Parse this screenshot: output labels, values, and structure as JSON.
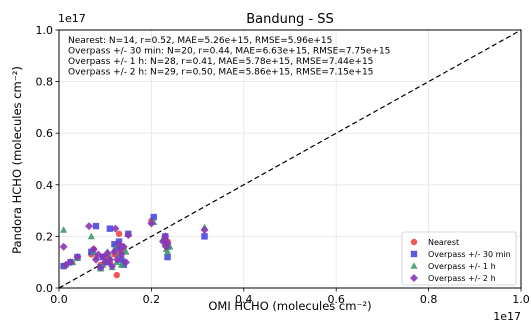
{
  "chart_data": {
    "type": "scatter",
    "title": "Bandung - SS",
    "xlabel": "OMI HCHO (molecules cm⁻²)",
    "ylabel": "Pandora HCHO (molecules cm⁻²)",
    "x_offset_label": "1e17",
    "y_offset_label": "1e17",
    "xlim": [
      0.0,
      1.0
    ],
    "ylim": [
      0.0,
      1.0
    ],
    "x_ticks": [
      "0.0",
      "0.2",
      "0.4",
      "0.6",
      "0.8",
      "1.0"
    ],
    "y_ticks": [
      "0.0",
      "0.2",
      "0.4",
      "0.6",
      "0.8",
      "1.0"
    ],
    "grid": true,
    "one_to_one_line": true,
    "legend_position": "lower right",
    "stats_lines": [
      "Nearest: N=14, r=0.52, MAE=5.26e+15, RMSE=5.96e+15",
      "Overpass +/- 30 min: N=20, r=0.44, MAE=6.63e+15, RMSE=7.75e+15",
      "Overpass +/- 1 h: N=28, r=0.41, MAE=5.78e+15, RMSE=7.44e+15",
      "Overpass +/- 2 h: N=29, r=0.50, MAE=5.86e+15, RMSE=7.15e+15"
    ],
    "series": [
      {
        "name": "Nearest",
        "marker": "circle",
        "color": "#f04646",
        "points": [
          [
            0.01,
            0.085
          ],
          [
            0.07,
            0.13
          ],
          [
            0.075,
            0.15
          ],
          [
            0.09,
            0.09
          ],
          [
            0.1,
            0.12
          ],
          [
            0.11,
            0.1
          ],
          [
            0.12,
            0.13
          ],
          [
            0.125,
            0.05
          ],
          [
            0.13,
            0.21
          ],
          [
            0.135,
            0.14
          ],
          [
            0.14,
            0.1
          ],
          [
            0.2,
            0.26
          ],
          [
            0.23,
            0.17
          ],
          [
            0.235,
            0.18
          ]
        ]
      },
      {
        "name": "Overpass +/- 30 min",
        "marker": "square",
        "color": "#4848e0",
        "points": [
          [
            0.01,
            0.085
          ],
          [
            0.025,
            0.1
          ],
          [
            0.04,
            0.12
          ],
          [
            0.07,
            0.14
          ],
          [
            0.08,
            0.24
          ],
          [
            0.09,
            0.08
          ],
          [
            0.095,
            0.12
          ],
          [
            0.105,
            0.1
          ],
          [
            0.11,
            0.23
          ],
          [
            0.12,
            0.17
          ],
          [
            0.125,
            0.16
          ],
          [
            0.13,
            0.18
          ],
          [
            0.135,
            0.11
          ],
          [
            0.14,
            0.09
          ],
          [
            0.15,
            0.21
          ],
          [
            0.205,
            0.275
          ],
          [
            0.23,
            0.2
          ],
          [
            0.235,
            0.16
          ],
          [
            0.235,
            0.12
          ],
          [
            0.315,
            0.2
          ]
        ]
      },
      {
        "name": "Overpass +/- 1 h",
        "marker": "triangle",
        "color": "#3f9a6a",
        "points": [
          [
            0.01,
            0.225
          ],
          [
            0.015,
            0.09
          ],
          [
            0.03,
            0.1
          ],
          [
            0.04,
            0.115
          ],
          [
            0.07,
            0.2
          ],
          [
            0.075,
            0.14
          ],
          [
            0.08,
            0.12
          ],
          [
            0.09,
            0.075
          ],
          [
            0.095,
            0.09
          ],
          [
            0.1,
            0.11
          ],
          [
            0.105,
            0.14
          ],
          [
            0.11,
            0.12
          ],
          [
            0.115,
            0.08
          ],
          [
            0.12,
            0.15
          ],
          [
            0.125,
            0.1
          ],
          [
            0.128,
            0.17
          ],
          [
            0.13,
            0.13
          ],
          [
            0.135,
            0.09
          ],
          [
            0.14,
            0.16
          ],
          [
            0.145,
            0.14
          ],
          [
            0.15,
            0.21
          ],
          [
            0.205,
            0.255
          ],
          [
            0.225,
            0.19
          ],
          [
            0.23,
            0.17
          ],
          [
            0.232,
            0.15
          ],
          [
            0.235,
            0.14
          ],
          [
            0.24,
            0.16
          ],
          [
            0.315,
            0.235
          ]
        ]
      },
      {
        "name": "Overpass +/- 2 h",
        "marker": "diamond",
        "color": "#8b35b8",
        "points": [
          [
            0.01,
            0.16
          ],
          [
            0.015,
            0.09
          ],
          [
            0.025,
            0.1
          ],
          [
            0.04,
            0.12
          ],
          [
            0.065,
            0.24
          ],
          [
            0.075,
            0.15
          ],
          [
            0.08,
            0.11
          ],
          [
            0.085,
            0.13
          ],
          [
            0.09,
            0.08
          ],
          [
            0.095,
            0.12
          ],
          [
            0.1,
            0.1
          ],
          [
            0.105,
            0.135
          ],
          [
            0.11,
            0.11
          ],
          [
            0.115,
            0.085
          ],
          [
            0.12,
            0.14
          ],
          [
            0.122,
            0.23
          ],
          [
            0.126,
            0.11
          ],
          [
            0.13,
            0.17
          ],
          [
            0.132,
            0.15
          ],
          [
            0.135,
            0.13
          ],
          [
            0.14,
            0.16
          ],
          [
            0.145,
            0.1
          ],
          [
            0.15,
            0.205
          ],
          [
            0.2,
            0.25
          ],
          [
            0.225,
            0.18
          ],
          [
            0.23,
            0.2
          ],
          [
            0.232,
            0.16
          ],
          [
            0.235,
            0.175
          ],
          [
            0.315,
            0.225
          ]
        ]
      }
    ]
  }
}
